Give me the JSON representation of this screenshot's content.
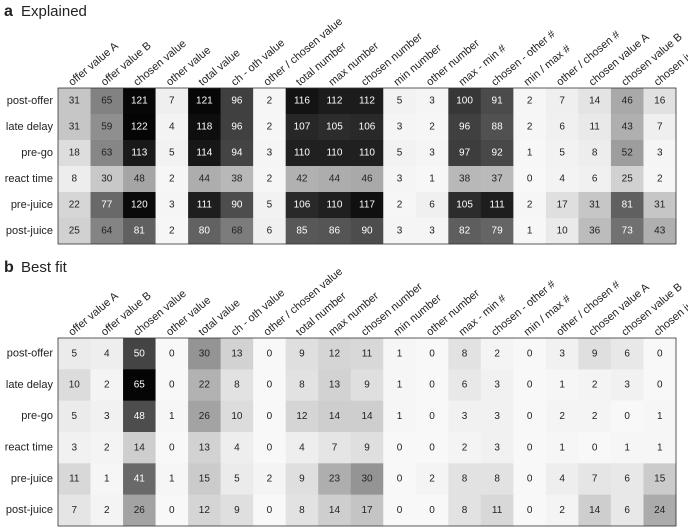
{
  "chart_data": [
    {
      "type": "heatmap",
      "panel": "a",
      "title": "Explained",
      "x_categories": [
        "offer value A",
        "offer value B",
        "chosen value",
        "other value",
        "total value",
        "ch - oth value",
        "other / chosen value",
        "total number",
        "max number",
        "chosen number",
        "min number",
        "other number",
        "max - min #",
        "chosen - other #",
        "min / max #",
        "other / chosen #",
        "chosen value A",
        "chosen value B",
        "chosen juice"
      ],
      "y_categories": [
        "post-offer",
        "late delay",
        "pre-go",
        "react time",
        "pre-juice",
        "post-juice"
      ],
      "values": [
        [
          31,
          65,
          121,
          7,
          121,
          96,
          2,
          116,
          112,
          112,
          5,
          3,
          100,
          91,
          2,
          7,
          14,
          46,
          16
        ],
        [
          31,
          59,
          122,
          4,
          118,
          96,
          2,
          107,
          105,
          106,
          3,
          2,
          96,
          88,
          2,
          6,
          11,
          43,
          7
        ],
        [
          18,
          63,
          113,
          5,
          114,
          94,
          3,
          110,
          110,
          110,
          5,
          3,
          97,
          92,
          1,
          5,
          8,
          52,
          3
        ],
        [
          8,
          30,
          48,
          2,
          44,
          38,
          2,
          42,
          44,
          46,
          3,
          1,
          38,
          37,
          0,
          4,
          6,
          25,
          2
        ],
        [
          22,
          77,
          120,
          3,
          111,
          90,
          5,
          106,
          110,
          117,
          2,
          6,
          105,
          111,
          2,
          17,
          31,
          81,
          31
        ],
        [
          25,
          64,
          81,
          2,
          80,
          68,
          6,
          85,
          86,
          90,
          3,
          3,
          82,
          79,
          1,
          10,
          36,
          73,
          43
        ]
      ]
    },
    {
      "type": "heatmap",
      "panel": "b",
      "title": "Best fit",
      "x_categories": [
        "offer value A",
        "offer value B",
        "chosen value",
        "other value",
        "total value",
        "ch - oth value",
        "other / chosen value",
        "total number",
        "max number",
        "chosen number",
        "min number",
        "other number",
        "max - min #",
        "chosen - other #",
        "min / max #",
        "other / chosen #",
        "chosen value A",
        "chosen value B",
        "chosen juice"
      ],
      "y_categories": [
        "post-offer",
        "late delay",
        "pre-go",
        "react time",
        "pre-juice",
        "post-juice"
      ],
      "values": [
        [
          5,
          4,
          50,
          0,
          30,
          13,
          0,
          9,
          12,
          11,
          1,
          0,
          8,
          2,
          0,
          3,
          9,
          6,
          0
        ],
        [
          10,
          2,
          65,
          0,
          22,
          8,
          0,
          8,
          13,
          9,
          1,
          0,
          6,
          3,
          0,
          1,
          2,
          3,
          0
        ],
        [
          5,
          3,
          48,
          1,
          26,
          10,
          0,
          12,
          14,
          14,
          1,
          0,
          3,
          3,
          0,
          2,
          2,
          0,
          1
        ],
        [
          3,
          2,
          14,
          0,
          13,
          4,
          0,
          4,
          7,
          9,
          0,
          0,
          2,
          3,
          0,
          1,
          0,
          1,
          1
        ],
        [
          11,
          1,
          41,
          1,
          15,
          5,
          2,
          9,
          23,
          30,
          0,
          2,
          8,
          8,
          0,
          4,
          7,
          6,
          15
        ],
        [
          7,
          2,
          26,
          0,
          12,
          9,
          0,
          8,
          14,
          17,
          0,
          0,
          8,
          11,
          0,
          2,
          14,
          6,
          24
        ]
      ]
    }
  ]
}
